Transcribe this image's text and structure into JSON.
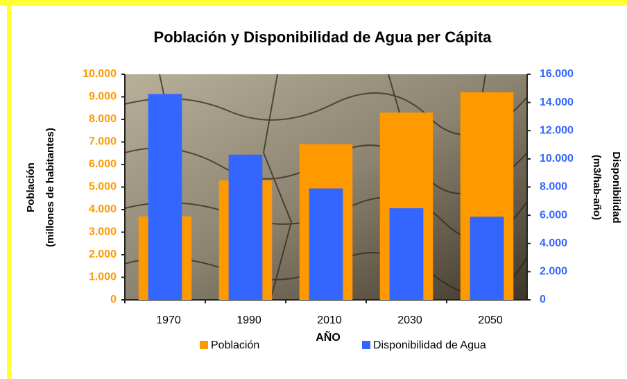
{
  "chart_data": {
    "type": "bar",
    "title": "Población y Disponibilidad de Agua per Cápita",
    "xlabel": "AÑO",
    "ylabel": [
      "Población",
      "(millones de habitantes)"
    ],
    "y2label": [
      "Disponibilidad",
      "(m3/hab-año)"
    ],
    "categories": [
      "1970",
      "1990",
      "2010",
      "2030",
      "2050"
    ],
    "series": [
      {
        "name": "Población",
        "color": "#ff9900",
        "axis": "y",
        "values": [
          3700,
          5300,
          6900,
          8300,
          9200
        ]
      },
      {
        "name": "Disponibilidad de Agua",
        "color": "#3366ff",
        "axis": "y2",
        "values": [
          14600,
          10300,
          7900,
          6500,
          5900
        ]
      }
    ],
    "ylim": [
      0,
      10000
    ],
    "yticks": [
      0,
      {
        "value": 1000,
        "label": "1.000"
      },
      {
        "value": 2000,
        "label": "2.000"
      },
      {
        "value": 3000,
        "label": "3.000"
      },
      {
        "value": 4000,
        "label": "4.000"
      },
      {
        "value": 5000,
        "label": "5.000"
      },
      {
        "value": 6000,
        "label": "6.000"
      },
      {
        "value": 7000,
        "label": "7.000"
      },
      {
        "value": 8000,
        "label": "8.000"
      },
      {
        "value": 9000,
        "label": "9.000"
      },
      {
        "value": 10000,
        "label": "10.000"
      }
    ],
    "y2lim": [
      0,
      16000
    ],
    "y2ticks": [
      0,
      {
        "value": 2000,
        "label": "2.000"
      },
      {
        "value": 4000,
        "label": "4.000"
      },
      {
        "value": 6000,
        "label": "6.000"
      },
      {
        "value": 8000,
        "label": "8.000"
      },
      {
        "value": 10000,
        "label": "10.000"
      },
      {
        "value": 12000,
        "label": "12.000"
      },
      {
        "value": 14000,
        "label": "14.000"
      },
      {
        "value": 16000,
        "label": "16.000"
      }
    ],
    "legend": "bottom"
  }
}
